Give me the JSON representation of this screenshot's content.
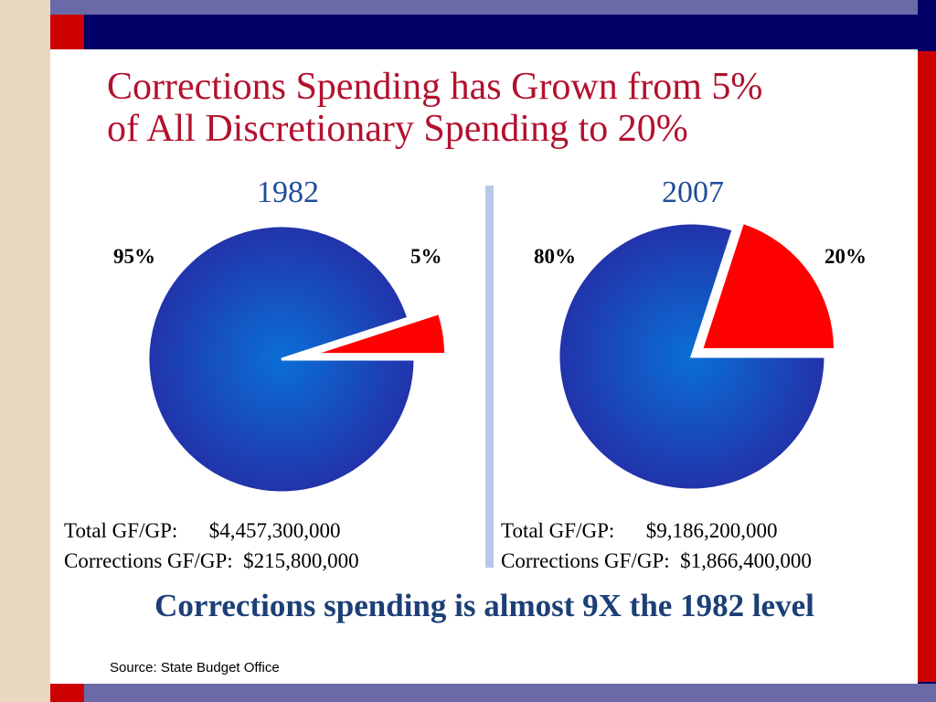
{
  "title_line1": "Corrections Spending has Grown from 5%",
  "title_line2": "of All Discretionary Spending to 20%",
  "colors": {
    "other": "#2233aa",
    "other_center": "#0a6fd6",
    "corrections": "#ff0000",
    "title": "#b3112e",
    "year": "#1f4e9a",
    "conclusion": "#1c3f77"
  },
  "chart_data": [
    {
      "type": "pie",
      "title": "1982",
      "labels": [
        "95%",
        "5%"
      ],
      "values": [
        95,
        5
      ],
      "exploded": [
        false,
        true
      ],
      "total_label": "Total GF/GP:",
      "total_value": "$4,457,300,000",
      "corrections_label": "Corrections GF/GP:",
      "corrections_value": "$215,800,000"
    },
    {
      "type": "pie",
      "title": "2007",
      "labels": [
        "80%",
        "20%"
      ],
      "values": [
        80,
        20
      ],
      "exploded": [
        false,
        true
      ],
      "total_label": "Total GF/GP:",
      "total_value": "$9,186,200,000",
      "corrections_label": "Corrections GF/GP:",
      "corrections_value": "$1,866,400,000"
    }
  ],
  "conclusion": "Corrections spending is almost 9X the 1982 level",
  "source": "Source:  State Budget Office"
}
